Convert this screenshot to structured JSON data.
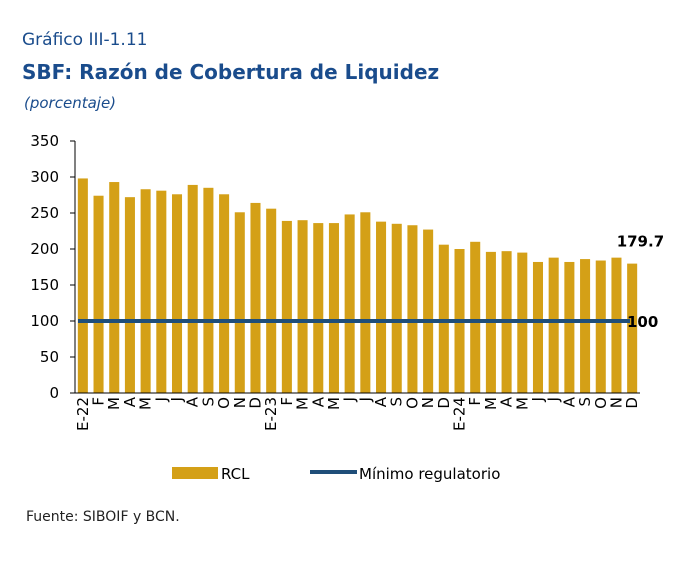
{
  "header": {
    "label": "Gráfico III-1.11",
    "title": "SBF: Razón de Cobertura de Liquidez",
    "subtitle": "(porcentaje)"
  },
  "footer": {
    "source": "Fuente: SIBOIF y BCN."
  },
  "colors": {
    "bars": "#d4a017",
    "line": "#1f4e79",
    "text": "#1a4c8c"
  },
  "chart_data": {
    "type": "bar",
    "categories": [
      "E-22",
      "F",
      "M",
      "A",
      "M",
      "J",
      "J",
      "A",
      "S",
      "O",
      "N",
      "D",
      "E-23",
      "F",
      "M",
      "A",
      "M",
      "J",
      "J",
      "A",
      "S",
      "O",
      "N",
      "D",
      "E-24",
      "F",
      "M",
      "A",
      "M",
      "J",
      "J",
      "A",
      "S",
      "O",
      "N",
      "D"
    ],
    "series": [
      {
        "name": "RCL",
        "type": "bar",
        "values": [
          298,
          274,
          293,
          272,
          283,
          281,
          276,
          289,
          285,
          276,
          251,
          264,
          256,
          239,
          240,
          236,
          236,
          248,
          251,
          238,
          235,
          233,
          227,
          206,
          200,
          210,
          196,
          197,
          195,
          182,
          188,
          182,
          186,
          184,
          188,
          179.7
        ]
      },
      {
        "name": "Mínimo regulatorio",
        "type": "line",
        "values": [
          100,
          100,
          100,
          100,
          100,
          100,
          100,
          100,
          100,
          100,
          100,
          100,
          100,
          100,
          100,
          100,
          100,
          100,
          100,
          100,
          100,
          100,
          100,
          100,
          100,
          100,
          100,
          100,
          100,
          100,
          100,
          100,
          100,
          100,
          100,
          100
        ]
      }
    ],
    "yticks": [
      0,
      50,
      100,
      150,
      200,
      250,
      300,
      350
    ],
    "ylim": [
      0,
      350
    ],
    "annotations": [
      "179.7",
      "100"
    ],
    "legend_position": "bottom",
    "grid": false
  }
}
